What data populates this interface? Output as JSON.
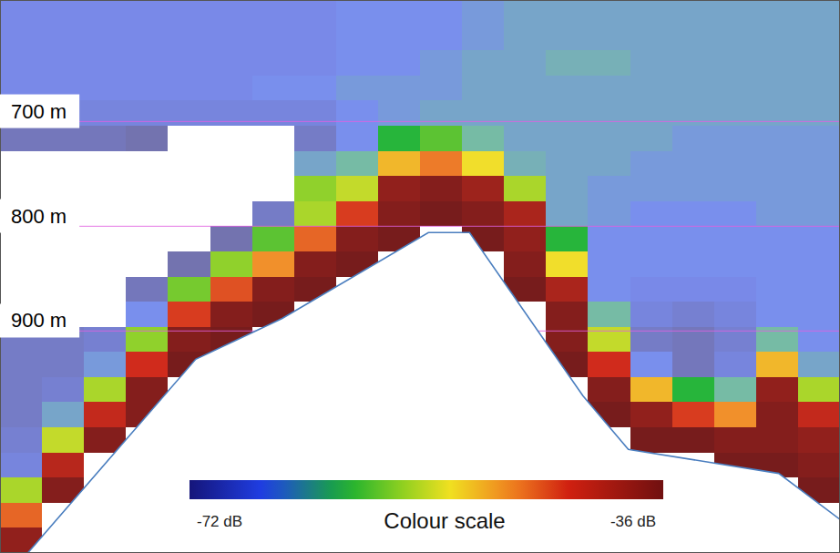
{
  "chart_data": {
    "type": "heatmap",
    "xlim": [
      0,
      100
    ],
    "ylim": [
      584,
      1112
    ],
    "yticks": [
      {
        "value": 700,
        "label": "700 m"
      },
      {
        "value": 800,
        "label": "800 m"
      },
      {
        "value": 900,
        "label": "900 m"
      }
    ],
    "grid": true,
    "tick_labels": "y",
    "heatmap": {
      "x_edges": [
        0,
        5,
        10,
        15,
        20,
        25,
        30,
        35,
        40,
        45,
        50,
        55,
        60,
        65,
        70,
        75,
        80,
        85,
        90,
        95,
        100
      ],
      "y_edges": [
        584,
        608,
        632,
        656,
        680,
        704,
        728,
        752,
        776,
        800,
        824,
        848,
        872,
        896,
        920,
        944,
        968,
        992,
        1016,
        1040,
        1064,
        1088,
        1112
      ],
      "values": [
        [
          -67,
          -67,
          -67,
          -67,
          -68,
          -71,
          -75,
          -75,
          -75,
          -75,
          -75,
          -75,
          -75,
          -70,
          -70,
          -70,
          -70,
          -69,
          -68,
          -55,
          -46,
          -38
        ],
        [
          -67,
          -67,
          -67,
          -67,
          -68,
          -71,
          -75,
          -75,
          -75,
          -75,
          -75,
          -75,
          -74,
          -70,
          -70,
          -69,
          -64,
          -54,
          -41,
          -37,
          null,
          null
        ],
        [
          -67,
          -67,
          -67,
          -67,
          -68,
          -71,
          -75,
          -75,
          -75,
          -75,
          -75,
          -75,
          -73,
          -69,
          -65,
          -55,
          -42,
          -37,
          null,
          null,
          null,
          null
        ],
        [
          -67,
          -67,
          -67,
          -67,
          -68,
          -72,
          -75,
          -75,
          -75,
          -75,
          -75,
          -71,
          -66,
          -56,
          -43,
          -37,
          -37,
          null,
          null,
          null,
          null,
          null
        ],
        [
          -67,
          -67,
          -67,
          -67,
          -68,
          -73,
          -75,
          -75,
          -75,
          -75,
          -72,
          -57,
          -44,
          -37,
          -36,
          null,
          null,
          null,
          null,
          null,
          null,
          null
        ],
        [
          -67,
          -67,
          -67,
          -67,
          -68,
          -73,
          -75,
          -75,
          -75,
          -72,
          -56,
          -45,
          -37,
          -36,
          null,
          null,
          null,
          null,
          null,
          null,
          null,
          null
        ],
        [
          -67,
          -67,
          -67,
          -66,
          -68,
          -74,
          -75,
          -75,
          -70,
          -58,
          -48,
          -37,
          -36,
          null,
          null,
          null,
          null,
          null,
          null,
          null,
          null,
          null
        ],
        [
          -67,
          -67,
          -67,
          -66,
          -68,
          -70,
          -64,
          -56,
          -55,
          -46,
          -37,
          -36,
          null,
          null,
          null,
          null,
          null,
          null,
          null,
          null,
          null,
          null
        ],
        [
          -66,
          -66,
          -66,
          -65,
          -66,
          -66,
          -62,
          -54,
          -44,
          -37,
          -36,
          null,
          null,
          null,
          null,
          null,
          null,
          null,
          null,
          null,
          null,
          null
        ],
        [
          -66,
          -66,
          -66,
          -65,
          -65,
          -60,
          -50,
          -38,
          -37,
          -36,
          null,
          null,
          null,
          null,
          null,
          null,
          null,
          null,
          null,
          null,
          null,
          null
        ],
        [
          -66,
          -66,
          -65,
          -65,
          -64,
          -58,
          -47,
          -37,
          -36,
          null,
          null,
          null,
          null,
          null,
          null,
          null,
          null,
          null,
          null,
          null,
          null,
          null
        ],
        [
          -65,
          -65,
          -64,
          -64,
          -64,
          -62,
          -52,
          -39,
          -37,
          -36,
          null,
          null,
          null,
          null,
          null,
          null,
          null,
          null,
          null,
          null,
          null,
          null
        ],
        [
          -64,
          -64,
          -64,
          -64,
          -64,
          -64,
          -63,
          -55,
          -40,
          -38,
          -37,
          -36,
          null,
          null,
          null,
          null,
          null,
          null,
          null,
          null,
          null,
          null
        ],
        [
          -64,
          -64,
          -63,
          -64,
          -64,
          -64,
          -64,
          -64,
          -64,
          -60,
          -52,
          -40,
          -37,
          -37,
          -36,
          null,
          null,
          null,
          null,
          null,
          null,
          null
        ],
        [
          -64,
          -64,
          -63,
          -64,
          -64,
          -64,
          -64,
          -65,
          -65,
          -66,
          -66,
          -66,
          -62,
          -54,
          -43,
          -37,
          -36,
          null,
          null,
          null,
          null,
          null
        ],
        [
          -64,
          -64,
          -64,
          -64,
          -64,
          -64,
          -65,
          -65,
          -66,
          -66,
          -66,
          -67,
          -68,
          -70,
          -66,
          -50,
          -38,
          -36,
          null,
          null,
          null,
          null
        ],
        [
          -64,
          -64,
          -64,
          -64,
          -64,
          -65,
          -65,
          -65,
          -66,
          -66,
          -66,
          -67,
          -69,
          -71,
          -71,
          -60,
          -44,
          -36,
          null,
          null,
          null,
          null
        ],
        [
          -64,
          -64,
          -64,
          -64,
          -64,
          -65,
          -65,
          -65,
          -66,
          -66,
          -66,
          -67,
          -68,
          -69,
          -68,
          -62,
          -48,
          -37,
          -36,
          null,
          null,
          null
        ],
        [
          -64,
          -64,
          -64,
          -64,
          -64,
          -65,
          -65,
          -65,
          -65,
          -66,
          -66,
          -66,
          -66,
          -62,
          -50,
          -38,
          -37,
          -37,
          -36,
          null,
          null,
          null
        ],
        [
          -64,
          -64,
          -64,
          -64,
          -64,
          -65,
          -65,
          -65,
          -65,
          -66,
          -66,
          -66,
          -66,
          -66,
          -64,
          -55,
          -42,
          -38,
          -37,
          -36,
          null,
          null
        ]
      ]
    },
    "seabed": {
      "x": [
        0,
        3.3,
        23.3,
        33.6,
        51,
        55.9,
        69.4,
        74.8,
        92.7,
        100
      ],
      "y": [
        1135,
        1112,
        927,
        888,
        806,
        806,
        962,
        1013,
        1036,
        1080
      ],
      "color": "#4a7ebf"
    },
    "colorbar": {
      "title": "Colour scale",
      "range": [
        -72,
        -36
      ],
      "ticks": [
        {
          "value": -72,
          "label": "-72 dB"
        },
        {
          "value": -36,
          "label": "-36 dB"
        }
      ]
    }
  }
}
